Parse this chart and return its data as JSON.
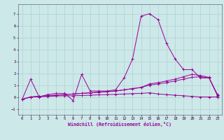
{
  "xlabel": "Windchill (Refroidissement éolien,°C)",
  "bg_color": "#cce8e8",
  "line_color": "#990099",
  "xlim": [
    -0.5,
    23.5
  ],
  "ylim": [
    -1.5,
    7.8
  ],
  "yticks": [
    -1,
    0,
    1,
    2,
    3,
    4,
    5,
    6,
    7
  ],
  "xticks": [
    0,
    1,
    2,
    3,
    4,
    5,
    6,
    7,
    8,
    9,
    10,
    11,
    12,
    13,
    14,
    15,
    16,
    17,
    18,
    19,
    20,
    21,
    22,
    23
  ],
  "series1": [
    [
      0,
      -0.2
    ],
    [
      1,
      1.5
    ],
    [
      2,
      0.0
    ],
    [
      3,
      0.2
    ],
    [
      4,
      0.3
    ],
    [
      5,
      0.3
    ],
    [
      6,
      -0.3
    ],
    [
      7,
      1.9
    ],
    [
      8,
      0.5
    ],
    [
      9,
      0.5
    ],
    [
      10,
      0.5
    ],
    [
      11,
      0.6
    ],
    [
      12,
      1.6
    ],
    [
      13,
      3.2
    ],
    [
      14,
      6.8
    ],
    [
      15,
      7.0
    ],
    [
      16,
      6.5
    ],
    [
      17,
      4.5
    ],
    [
      18,
      3.2
    ],
    [
      19,
      2.3
    ],
    [
      20,
      2.3
    ],
    [
      21,
      1.6
    ],
    [
      22,
      1.6
    ],
    [
      23,
      0.2
    ]
  ],
  "series2": [
    [
      0,
      -0.2
    ],
    [
      1,
      0.0
    ],
    [
      2,
      0.05
    ],
    [
      3,
      0.1
    ],
    [
      4,
      0.15
    ],
    [
      5,
      0.2
    ],
    [
      6,
      0.25
    ],
    [
      7,
      0.3
    ],
    [
      8,
      0.35
    ],
    [
      9,
      0.4
    ],
    [
      10,
      0.45
    ],
    [
      11,
      0.5
    ],
    [
      12,
      0.6
    ],
    [
      13,
      0.7
    ],
    [
      14,
      0.8
    ],
    [
      15,
      1.0
    ],
    [
      16,
      1.1
    ],
    [
      17,
      1.2
    ],
    [
      18,
      1.35
    ],
    [
      19,
      1.5
    ],
    [
      20,
      1.65
    ],
    [
      21,
      1.7
    ],
    [
      22,
      1.6
    ],
    [
      23,
      0.15
    ]
  ],
  "series3": [
    [
      0,
      -0.2
    ],
    [
      1,
      0.0
    ],
    [
      2,
      0.05
    ],
    [
      3,
      0.1
    ],
    [
      4,
      0.15
    ],
    [
      5,
      0.2
    ],
    [
      6,
      0.25
    ],
    [
      7,
      0.3
    ],
    [
      8,
      0.35
    ],
    [
      9,
      0.4
    ],
    [
      10,
      0.45
    ],
    [
      11,
      0.5
    ],
    [
      12,
      0.6
    ],
    [
      13,
      0.7
    ],
    [
      14,
      0.8
    ],
    [
      15,
      1.1
    ],
    [
      16,
      1.2
    ],
    [
      17,
      1.35
    ],
    [
      18,
      1.5
    ],
    [
      19,
      1.7
    ],
    [
      20,
      1.9
    ],
    [
      21,
      1.8
    ],
    [
      22,
      1.65
    ],
    [
      23,
      0.1
    ]
  ],
  "series4": [
    [
      0,
      -0.2
    ],
    [
      1,
      0.0
    ],
    [
      2,
      0.02
    ],
    [
      3,
      0.05
    ],
    [
      4,
      0.08
    ],
    [
      5,
      0.1
    ],
    [
      6,
      0.1
    ],
    [
      7,
      0.12
    ],
    [
      8,
      0.15
    ],
    [
      9,
      0.18
    ],
    [
      10,
      0.2
    ],
    [
      11,
      0.22
    ],
    [
      12,
      0.25
    ],
    [
      13,
      0.28
    ],
    [
      14,
      0.3
    ],
    [
      15,
      0.35
    ],
    [
      16,
      0.25
    ],
    [
      17,
      0.2
    ],
    [
      18,
      0.15
    ],
    [
      19,
      0.1
    ],
    [
      20,
      0.05
    ],
    [
      21,
      0.0
    ],
    [
      22,
      0.0
    ],
    [
      23,
      0.0
    ]
  ]
}
